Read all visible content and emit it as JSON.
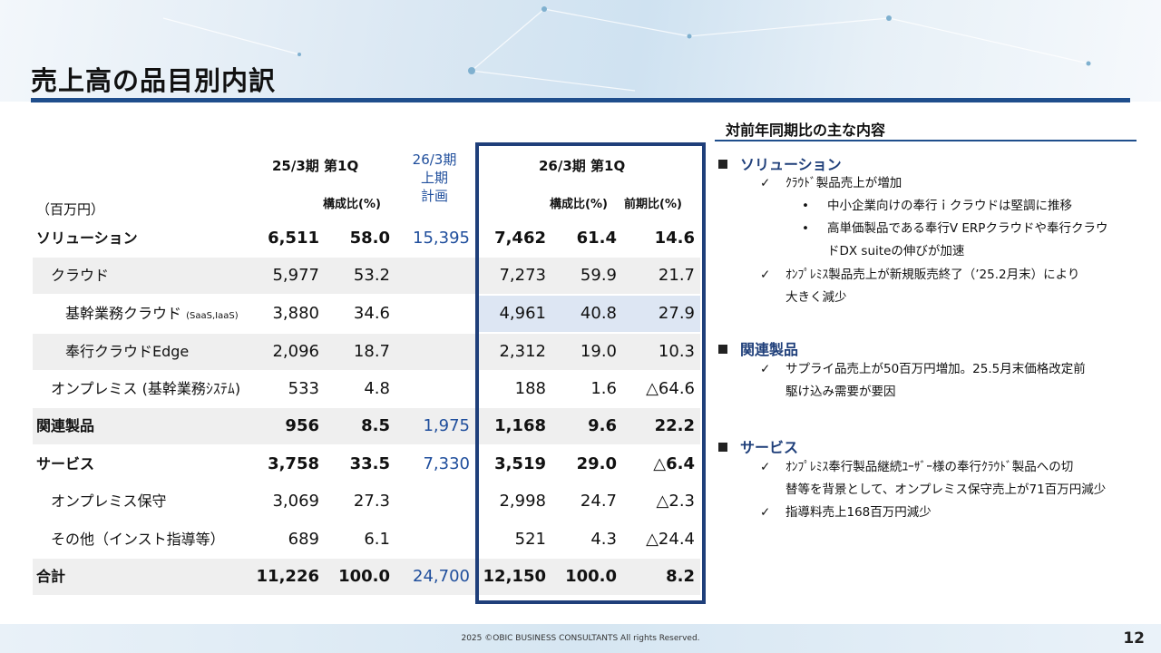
{
  "title": "売上高の品目別内訳",
  "page_number": "12",
  "footer": "2025 ©OBIC BUSINESS CONSULTANTS All rights Reserved.",
  "table": {
    "unit": "（百万円）",
    "header_prev": "25/3期 第1Q",
    "header_plan": [
      "26/3期",
      "上期",
      "計画"
    ],
    "header_curr": "26/3期 第1Q",
    "sub_ratio": "構成比(%)",
    "sub_yoy": "前期比(%)",
    "rows": [
      {
        "label": "ソリューション",
        "prev": "6,511",
        "prev_ratio": "58.0",
        "plan": "15,395",
        "curr": "7,462",
        "curr_ratio": "61.4",
        "yoy": "14.6"
      },
      {
        "label": "クラウド",
        "prev": "5,977",
        "prev_ratio": "53.2",
        "plan": "",
        "curr": "7,273",
        "curr_ratio": "59.9",
        "yoy": "21.7"
      },
      {
        "label": "基幹業務クラウド",
        "label_note": "(SaaS,IaaS)",
        "prev": "3,880",
        "prev_ratio": "34.6",
        "plan": "",
        "curr": "4,961",
        "curr_ratio": "40.8",
        "yoy": "27.9"
      },
      {
        "label": "奉行クラウドEdge",
        "prev": "2,096",
        "prev_ratio": "18.7",
        "plan": "",
        "curr": "2,312",
        "curr_ratio": "19.0",
        "yoy": "10.3"
      },
      {
        "label": "オンプレミス (基幹業務ｼｽﾃﾑ)",
        "prev": "533",
        "prev_ratio": "4.8",
        "plan": "",
        "curr": "188",
        "curr_ratio": "1.6",
        "yoy": "△64.6"
      },
      {
        "label": "関連製品",
        "prev": "956",
        "prev_ratio": "8.5",
        "plan": "1,975",
        "curr": "1,168",
        "curr_ratio": "9.6",
        "yoy": "22.2"
      },
      {
        "label": "サービス",
        "prev": "3,758",
        "prev_ratio": "33.5",
        "plan": "7,330",
        "curr": "3,519",
        "curr_ratio": "29.0",
        "yoy": "△6.4"
      },
      {
        "label": "オンプレミス保守",
        "prev": "3,069",
        "prev_ratio": "27.3",
        "plan": "",
        "curr": "2,998",
        "curr_ratio": "24.7",
        "yoy": "△2.3"
      },
      {
        "label": "その他（インスト指導等）",
        "prev": "689",
        "prev_ratio": "6.1",
        "plan": "",
        "curr": "521",
        "curr_ratio": "4.3",
        "yoy": "△24.4"
      },
      {
        "label": "合計",
        "prev": "11,226",
        "prev_ratio": "100.0",
        "plan": "24,700",
        "curr": "12,150",
        "curr_ratio": "100.0",
        "yoy": "8.2"
      }
    ]
  },
  "panel": {
    "title": "対前年同期比の主な内容",
    "sec1": {
      "title": "ソリューション",
      "b1": "ｸﾗｳﾄﾞ製品売上が増加",
      "b1a": "中小企業向けの奉行ｉクラウドは堅調に推移",
      "b1b_l1": "高単価製品である奉行V ERPクラウドや奉行クラウ",
      "b1b_l2": "ドDX suiteの伸びが加速",
      "b2_l1": "ｵﾝﾌﾟﾚﾐｽ製品売上が新規販売終了（’25.2月末）により",
      "b2_l2": "大きく減少"
    },
    "sec2": {
      "title": "関連製品",
      "b1_l1": "サプライ品売上が50百万円増加。25.5月末価格改定前",
      "b1_l2": "駆け込み需要が要因"
    },
    "sec3": {
      "title": "サービス",
      "b1_l1": "ｵﾝﾌﾟﾚﾐｽ奉行製品継続ﾕｰｻﾞｰ様の奉行ｸﾗｳﾄﾞ製品への切",
      "b1_l2": "替等を背景として、オンプレミス保守売上が71百万円減少",
      "b2": "指導料売上168百万円減少"
    }
  },
  "colors": {
    "accent": "#1f4e8c",
    "box": "#1f3f7a",
    "plan_text": "#1f4e9c",
    "row_shade": "#efefef",
    "hl_shade": "#dde6f3"
  }
}
